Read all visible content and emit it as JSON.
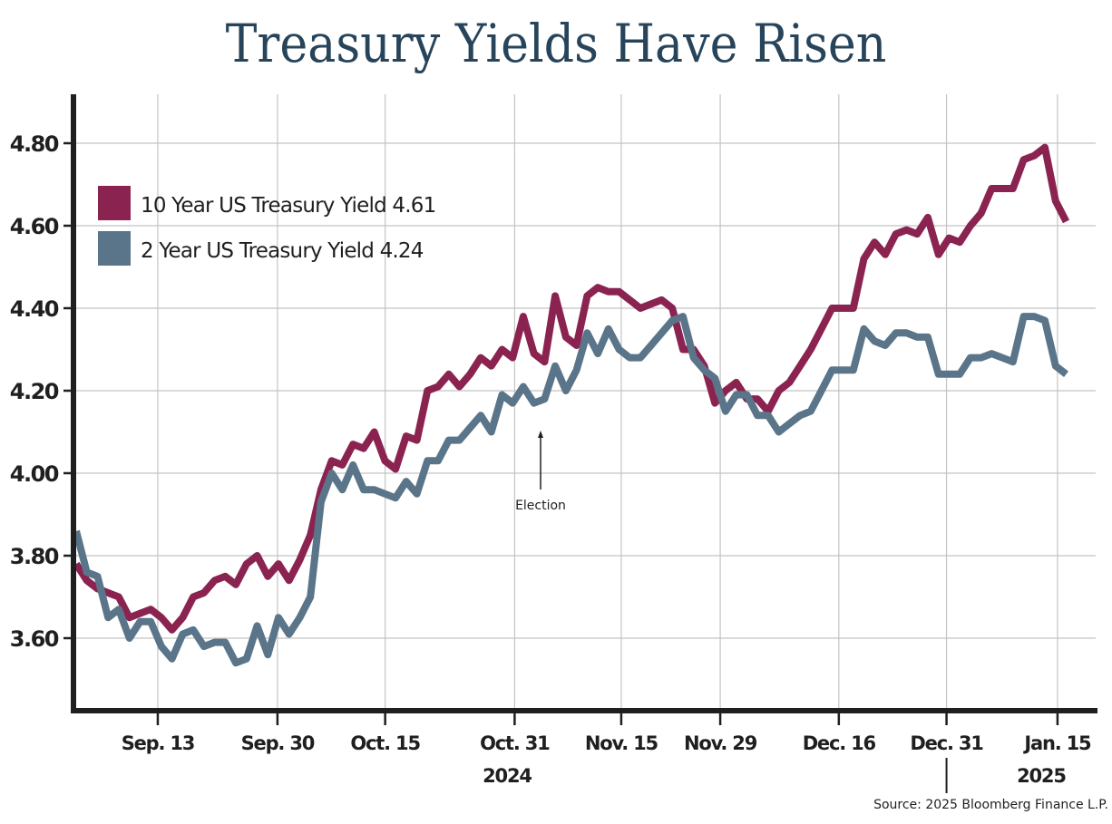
{
  "chart_data": {
    "type": "line",
    "title": "Treasury Yields Have Risen",
    "xlabel": "",
    "ylabel": "",
    "ylim": [
      3.42,
      4.92
    ],
    "yticks": [
      "4.80",
      "4.60",
      "4.40",
      "4.20",
      "4.00",
      "3.80",
      "3.60"
    ],
    "ytick_values": [
      4.8,
      4.6,
      4.4,
      4.2,
      4.0,
      3.8,
      3.6
    ],
    "xlim": [
      0,
      91
    ],
    "xticks": [
      {
        "label": "Sep. 13",
        "index": 7.5
      },
      {
        "label": "Sep. 30",
        "index": 18.5
      },
      {
        "label": "Oct. 15",
        "index": 28.4
      },
      {
        "label": "Oct. 31",
        "index": 40.3
      },
      {
        "label": "Nov. 15",
        "index": 50.1
      },
      {
        "label": "Nov. 29",
        "index": 59.2
      },
      {
        "label": "Dec. 16",
        "index": 70.1
      },
      {
        "label": "Dec. 31",
        "index": 80.0
      },
      {
        "label": "Jan. 15",
        "index": 90.2
      }
    ],
    "year_labels": [
      {
        "label": "2024",
        "index": 39.6
      },
      {
        "label": "2025",
        "index": 88.7
      }
    ],
    "year_divider_index": 80.0,
    "grid": true,
    "legend_position": "top-left",
    "series": [
      {
        "name": "10 Year US Treasury Yield 4.61",
        "color": "#8b2350",
        "values": [
          3.78,
          3.74,
          3.72,
          3.71,
          3.7,
          3.65,
          3.66,
          3.67,
          3.65,
          3.62,
          3.65,
          3.7,
          3.71,
          3.74,
          3.75,
          3.73,
          3.78,
          3.8,
          3.75,
          3.78,
          3.74,
          3.79,
          3.85,
          3.96,
          4.03,
          4.02,
          4.07,
          4.06,
          4.1,
          4.03,
          4.01,
          4.09,
          4.08,
          4.2,
          4.21,
          4.24,
          4.21,
          4.24,
          4.28,
          4.26,
          4.3,
          4.28,
          4.38,
          4.29,
          4.27,
          4.43,
          4.33,
          4.31,
          4.43,
          4.45,
          4.44,
          4.44,
          4.42,
          4.4,
          4.41,
          4.42,
          4.4,
          4.3,
          4.3,
          4.26,
          4.17,
          4.2,
          4.22,
          4.18,
          4.18,
          4.15,
          4.2,
          4.22,
          4.26,
          4.3,
          4.35,
          4.4,
          4.4,
          4.4,
          4.52,
          4.56,
          4.53,
          4.58,
          4.59,
          4.58,
          4.62,
          4.53,
          4.57,
          4.56,
          4.6,
          4.63,
          4.69,
          4.69,
          4.69,
          4.76,
          4.77,
          4.79,
          4.66,
          4.61
        ]
      },
      {
        "name": "2 Year US Treasury Yield 4.24",
        "color": "#5a7589",
        "values": [
          3.86,
          3.76,
          3.75,
          3.65,
          3.67,
          3.6,
          3.64,
          3.64,
          3.58,
          3.55,
          3.61,
          3.62,
          3.58,
          3.59,
          3.59,
          3.54,
          3.55,
          3.63,
          3.56,
          3.65,
          3.61,
          3.65,
          3.7,
          3.93,
          4.0,
          3.96,
          4.02,
          3.96,
          3.96,
          3.95,
          3.94,
          3.98,
          3.95,
          4.03,
          4.03,
          4.08,
          4.08,
          4.11,
          4.14,
          4.1,
          4.19,
          4.17,
          4.21,
          4.17,
          4.18,
          4.26,
          4.2,
          4.25,
          4.34,
          4.29,
          4.35,
          4.3,
          4.28,
          4.28,
          4.31,
          4.34,
          4.37,
          4.38,
          4.28,
          4.25,
          4.23,
          4.15,
          4.19,
          4.19,
          4.14,
          4.14,
          4.1,
          4.12,
          4.14,
          4.15,
          4.2,
          4.25,
          4.25,
          4.25,
          4.35,
          4.32,
          4.31,
          4.34,
          4.34,
          4.33,
          4.33,
          4.24,
          4.24,
          4.24,
          4.28,
          4.28,
          4.29,
          4.28,
          4.27,
          4.38,
          4.38,
          4.37,
          4.26,
          4.24
        ]
      }
    ],
    "annotations": [
      {
        "text": "Election",
        "index": 42.0,
        "value": 4.1
      }
    ],
    "source": "Source: 2025 Bloomberg Finance L.P."
  },
  "colors": {
    "title": "#27445a",
    "ten_year": "#8b2350",
    "two_year": "#5a7589",
    "axis": "#1f1f1f",
    "grid": "#c4c4c4"
  }
}
